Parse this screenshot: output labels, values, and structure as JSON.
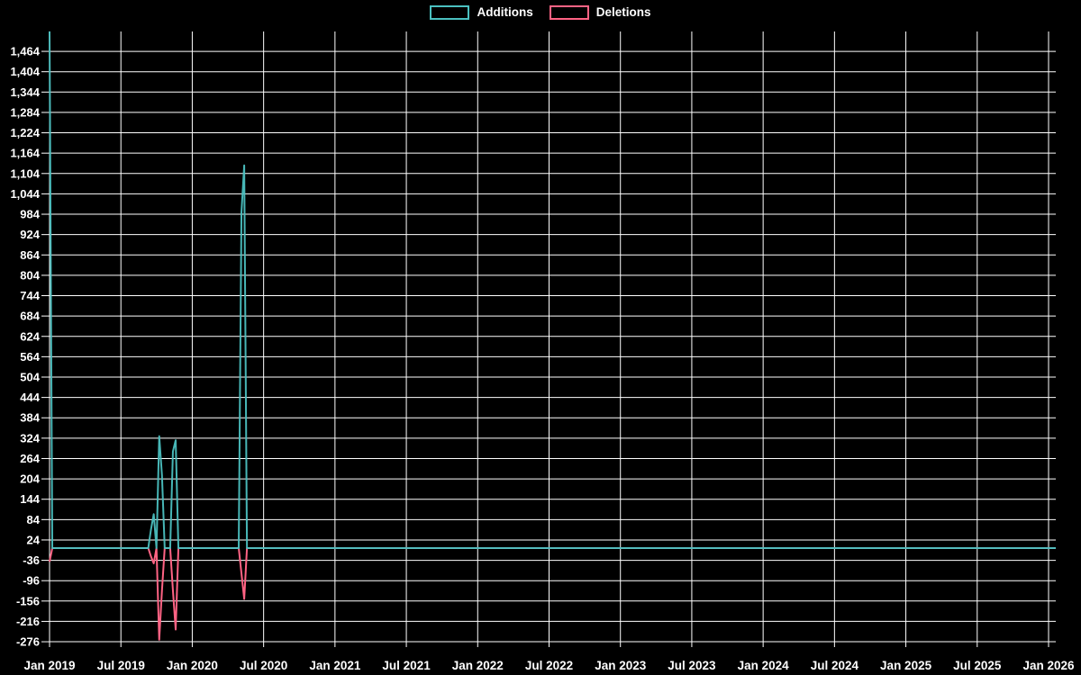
{
  "page": {
    "background": "#000000",
    "grid_color": "#ffffff",
    "text_color": "#ffffff"
  },
  "chart_data": {
    "type": "line",
    "title": "",
    "legend_position": "top",
    "background": "#000000",
    "grid": true,
    "x_axis": {
      "tick_labels": [
        "Jan 2019",
        "Jul 2019",
        "Jan 2020",
        "Jul 2020",
        "Jan 2021",
        "Jul 2021",
        "Jan 2022",
        "Jul 2022",
        "Jan 2023",
        "Jul 2023",
        "Jan 2024",
        "Jul 2024",
        "Jan 2025",
        "Jul 2025",
        "Jan 2026"
      ],
      "start_date": "2019-01-06",
      "end_date": "2026-01-18",
      "interval": "weekly"
    },
    "y_axis": {
      "tick_labels": [
        "1,464",
        "1,404",
        "1,344",
        "1,284",
        "1,224",
        "1,164",
        "1,104",
        "1,044",
        "984",
        "924",
        "864",
        "804",
        "744",
        "684",
        "624",
        "564",
        "504",
        "444",
        "384",
        "324",
        "264",
        "204",
        "144",
        "84",
        "24",
        "-36",
        "-96",
        "-156",
        "-216",
        "-276"
      ],
      "tick_max": 1464,
      "tick_min": -276,
      "tick_step": 60,
      "axis_max": 1523,
      "axis_min": -289
    },
    "series": [
      {
        "name": "Additions",
        "color": "#4bc0c0",
        "default_value": 0,
        "points": [
          [
            "2019-01-06",
            1523
          ],
          [
            "2019-09-22",
            55
          ],
          [
            "2019-09-29",
            100
          ],
          [
            "2019-10-13",
            330
          ],
          [
            "2019-10-20",
            215
          ],
          [
            "2019-11-17",
            285
          ],
          [
            "2019-11-24",
            318
          ],
          [
            "2020-05-10",
            990
          ],
          [
            "2020-05-17",
            1128
          ]
        ]
      },
      {
        "name": "Deletions",
        "color": "#ff6384",
        "default_value": 0,
        "points": [
          [
            "2019-01-06",
            -40
          ],
          [
            "2019-09-22",
            -25
          ],
          [
            "2019-09-29",
            -45
          ],
          [
            "2019-10-13",
            -270
          ],
          [
            "2019-10-20",
            -125
          ],
          [
            "2019-11-17",
            -125
          ],
          [
            "2019-11-24",
            -240
          ],
          [
            "2020-05-10",
            -75
          ],
          [
            "2020-05-17",
            -150
          ]
        ]
      }
    ],
    "note": "All weeks not listed in points have value 0 for both series."
  }
}
